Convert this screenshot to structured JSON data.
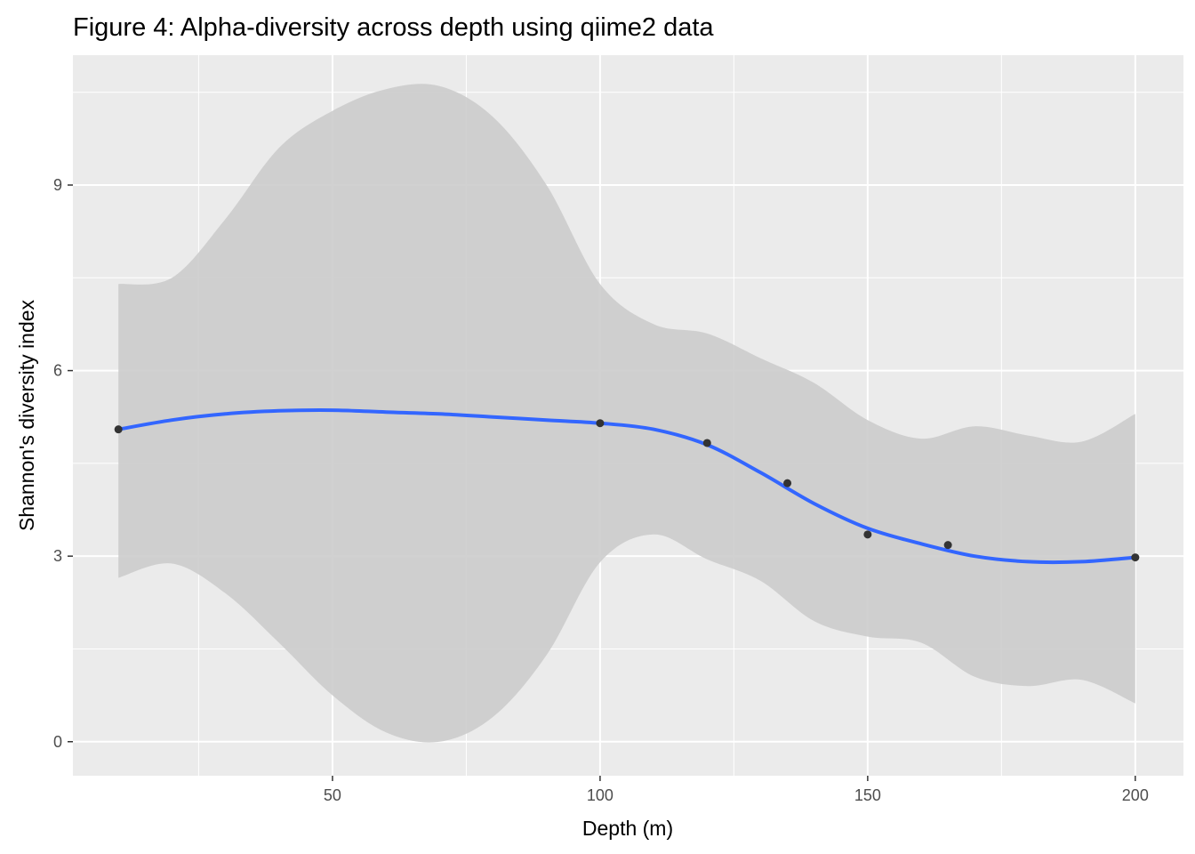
{
  "chart_data": {
    "type": "line",
    "title": "Figure 4: Alpha-diversity across depth using qiime2 data",
    "xlabel": "Depth (m)",
    "ylabel": "Shannon's diversity index",
    "xlim": [
      1.5,
      209
    ],
    "ylim": [
      -0.55,
      11.1
    ],
    "x_ticks": [
      50,
      100,
      150,
      200
    ],
    "x_tick_labels": [
      "50",
      "100",
      "150",
      "200"
    ],
    "x_minor_ticks": [
      25,
      75,
      125,
      175
    ],
    "y_ticks": [
      0,
      3,
      6,
      9
    ],
    "y_tick_labels": [
      "0",
      "3",
      "6",
      "9"
    ],
    "y_minor_ticks": [
      1.5,
      4.5,
      7.5,
      10.5
    ],
    "grid": true,
    "legend": "none",
    "colors": {
      "panel_background": "#ebebeb",
      "grid": "#ffffff",
      "points": "#333333",
      "smooth_line": "#3366ff",
      "confidence_band": "#cccccc"
    },
    "points": {
      "x": [
        10,
        100,
        120,
        135,
        150,
        165,
        200
      ],
      "y": [
        5.05,
        5.15,
        4.83,
        4.18,
        3.35,
        3.18,
        2.98
      ]
    },
    "smooth": {
      "method": "loess",
      "x": [
        10,
        20,
        30,
        40,
        50,
        60,
        70,
        80,
        90,
        100,
        110,
        120,
        130,
        140,
        150,
        160,
        170,
        180,
        190,
        200
      ],
      "fit": [
        5.05,
        5.2,
        5.3,
        5.35,
        5.36,
        5.33,
        5.3,
        5.25,
        5.2,
        5.15,
        5.05,
        4.8,
        4.35,
        3.85,
        3.45,
        3.2,
        3.0,
        2.91,
        2.91,
        2.98
      ],
      "lower": [
        2.65,
        2.88,
        2.4,
        1.6,
        0.75,
        0.15,
        0.0,
        0.4,
        1.4,
        2.9,
        3.35,
        2.95,
        2.6,
        1.95,
        1.7,
        1.6,
        1.05,
        0.9,
        1.0,
        0.62
      ],
      "upper": [
        7.4,
        7.5,
        8.45,
        9.6,
        10.2,
        10.55,
        10.6,
        10.1,
        9.0,
        7.4,
        6.75,
        6.6,
        6.2,
        5.8,
        5.2,
        4.9,
        5.1,
        4.95,
        4.85,
        5.3
      ]
    }
  }
}
